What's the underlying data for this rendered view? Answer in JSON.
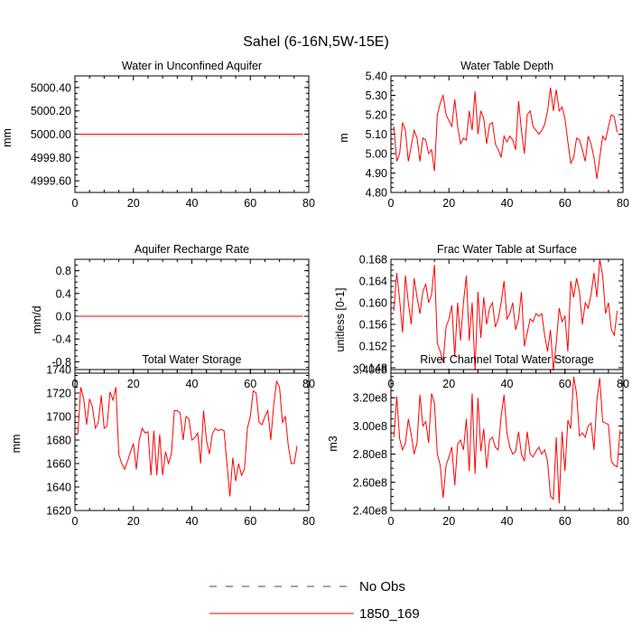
{
  "figure_title": "Sahel (6-16N,5W-15E)",
  "legend": {
    "entries": [
      {
        "label": "No Obs",
        "color": "#3b3bb8",
        "dashed": true
      },
      {
        "label": "1850_169",
        "color": "#ff0000",
        "dashed": false
      }
    ]
  },
  "chart_data": [
    {
      "type": "line",
      "title": "Water in Unconfined Aquifer",
      "ylabel": "mm",
      "xlim": [
        0,
        80
      ],
      "ylim": [
        4999.5,
        5000.5
      ],
      "yticks": [
        4999.6,
        4999.8,
        5000.0,
        5000.2,
        5000.4
      ],
      "ytick_labels": [
        "4999.60",
        "4999.80",
        "5000.00",
        "5000.20",
        "5000.40"
      ],
      "xticks": [
        0,
        20,
        40,
        60,
        80
      ],
      "xtick_labels": [
        "0",
        "20",
        "40",
        "60",
        "80"
      ],
      "series": [
        {
          "name": "1850_169",
          "color": "#ff0000",
          "x": [
            1,
            78
          ],
          "y": [
            5000.0,
            5000.0
          ]
        }
      ]
    },
    {
      "type": "line",
      "title": "Water Table Depth",
      "ylabel": "m",
      "xlim": [
        0,
        80
      ],
      "ylim": [
        4.8,
        5.4
      ],
      "yticks": [
        4.8,
        4.9,
        5.0,
        5.1,
        5.2,
        5.3,
        5.4
      ],
      "ytick_labels": [
        "4.80",
        "4.90",
        "5.00",
        "5.10",
        "5.20",
        "5.30",
        "5.40"
      ],
      "xticks": [
        0,
        20,
        40,
        60,
        80
      ],
      "xtick_labels": [
        "0",
        "20",
        "40",
        "60",
        "80"
      ],
      "series": [
        {
          "name": "1850_169",
          "color": "#ff0000",
          "start_x": 1,
          "y": [
            5.14,
            4.96,
            5.0,
            5.16,
            5.12,
            4.96,
            5.04,
            5.12,
            5.08,
            4.96,
            5.08,
            5.07,
            5.0,
            5.02,
            4.91,
            5.2,
            5.26,
            5.3,
            5.2,
            5.17,
            5.14,
            5.28,
            5.14,
            5.05,
            5.08,
            5.07,
            5.22,
            5.12,
            5.32,
            5.1,
            5.22,
            5.18,
            5.05,
            5.15,
            5.16,
            5.05,
            5.02,
            4.98,
            5.09,
            5.06,
            5.09,
            5.07,
            5.02,
            5.27,
            5.12,
            5.0,
            5.2,
            5.22,
            5.14,
            5.12,
            5.1,
            5.12,
            5.15,
            5.22,
            5.34,
            5.22,
            5.33,
            5.22,
            5.24,
            5.18,
            5.06,
            4.95,
            4.98,
            5.08,
            5.07,
            5.02,
            4.96,
            5.09,
            5.05,
            4.98,
            4.87,
            4.98,
            5.09,
            5.07,
            5.14,
            5.2,
            5.19,
            5.11
          ]
        }
      ]
    },
    {
      "type": "line",
      "title": "Aquifer Recharge Rate",
      "ylabel": "mm/d",
      "xlim": [
        0,
        80
      ],
      "ylim": [
        -1.0,
        1.0
      ],
      "yticks": [
        -0.8,
        -0.4,
        0.0,
        0.4,
        0.8
      ],
      "ytick_labels": [
        "-0.8",
        "-0.4",
        "0.0",
        "0.4",
        "0.8"
      ],
      "xticks": [
        0,
        20,
        40,
        60,
        80
      ],
      "xtick_labels": [
        "0",
        "20",
        "40",
        "60",
        "80"
      ],
      "series": [
        {
          "name": "1850_169",
          "color": "#ff0000",
          "x": [
            1,
            78
          ],
          "y": [
            0.0,
            0.0
          ]
        }
      ]
    },
    {
      "type": "line",
      "title": "Frac Water Table at Surface",
      "ylabel": "unitless [0-1]",
      "xlim": [
        0,
        80
      ],
      "ylim": [
        0.147,
        0.168
      ],
      "yticks": [
        0.148,
        0.152,
        0.156,
        0.16,
        0.164,
        0.168
      ],
      "ytick_labels": [
        "0.148",
        "0.152",
        "0.156",
        "0.160",
        "0.164",
        "0.168"
      ],
      "xticks": [
        0,
        20,
        40,
        60,
        80
      ],
      "xtick_labels": [
        "0",
        "20",
        "40",
        "60",
        "80"
      ],
      "series": [
        {
          "name": "1850_169",
          "color": "#ff0000",
          "start_x": 1,
          "y": [
            0.1585,
            0.1655,
            0.1605,
            0.1545,
            0.165,
            0.16,
            0.156,
            0.1645,
            0.161,
            0.158,
            0.162,
            0.1635,
            0.16,
            0.1615,
            0.167,
            0.1525,
            0.151,
            0.149,
            0.1555,
            0.157,
            0.1595,
            0.15,
            0.16,
            0.153,
            0.16,
            0.165,
            0.153,
            0.16,
            0.1475,
            0.162,
            0.1535,
            0.161,
            0.156,
            0.159,
            0.16,
            0.1555,
            0.157,
            0.16,
            0.164,
            0.157,
            0.158,
            0.16,
            0.155,
            0.157,
            0.162,
            0.152,
            0.1545,
            0.157,
            0.1565,
            0.158,
            0.1575,
            0.158,
            0.154,
            0.151,
            0.155,
            0.1475,
            0.1525,
            0.159,
            0.1565,
            0.1575,
            0.151,
            0.164,
            0.161,
            0.1645,
            0.162,
            0.156,
            0.16,
            0.159,
            0.1615,
            0.1655,
            0.161,
            0.168,
            0.165,
            0.158,
            0.16,
            0.155,
            0.154,
            0.1585
          ]
        }
      ]
    },
    {
      "type": "line",
      "title": "Total Water Storage",
      "ylabel": "mm",
      "xlim": [
        0,
        80
      ],
      "ylim": [
        1620,
        1740
      ],
      "yticks": [
        1620,
        1640,
        1660,
        1680,
        1700,
        1720,
        1740
      ],
      "ytick_labels": [
        "1620",
        "1640",
        "1660",
        "1680",
        "1700",
        "1720",
        "1740"
      ],
      "xticks": [
        0,
        20,
        40,
        60,
        80
      ],
      "xtick_labels": [
        "0",
        "20",
        "40",
        "60",
        "80"
      ],
      "series": [
        {
          "name": "1850_169",
          "color": "#ff0000",
          "start_x": 1,
          "y": [
            1685,
            1725,
            1715,
            1693,
            1715,
            1708,
            1690,
            1695,
            1718,
            1690,
            1692,
            1721,
            1714,
            1725,
            1668,
            1660,
            1655,
            1662,
            1670,
            1677,
            1655,
            1680,
            1690,
            1686,
            1687,
            1650,
            1688,
            1650,
            1685,
            1650,
            1670,
            1660,
            1668,
            1705,
            1705,
            1703,
            1680,
            1700,
            1698,
            1680,
            1682,
            1686,
            1660,
            1705,
            1680,
            1668,
            1685,
            1690,
            1688,
            1689,
            1688,
            1660,
            1632,
            1665,
            1645,
            1660,
            1650,
            1655,
            1690,
            1700,
            1722,
            1720,
            1695,
            1693,
            1700,
            1705,
            1680,
            1710,
            1730,
            1725,
            1695,
            1700,
            1675,
            1660,
            1660,
            1675
          ]
        }
      ]
    },
    {
      "type": "line",
      "title": "River Channel Total Water Storage",
      "ylabel": "m3",
      "xlim": [
        0,
        80
      ],
      "ylim": [
        240000000.0,
        340000000.0
      ],
      "yticks": [
        240000000.0,
        260000000.0,
        280000000.0,
        300000000.0,
        320000000.0,
        340000000.0
      ],
      "ytick_labels": [
        "2.40e8",
        "2.60e8",
        "2.80e8",
        "3.00e8",
        "3.20e8",
        "3.40e8"
      ],
      "xticks": [
        0,
        20,
        40,
        60,
        80
      ],
      "xtick_labels": [
        "0",
        "20",
        "40",
        "60",
        "80"
      ],
      "series": [
        {
          "name": "1850_169",
          "color": "#ff0000",
          "start_x": 1,
          "y": [
            292000000.0,
            321000000.0,
            291000000.0,
            283000000.0,
            288000000.0,
            305000000.0,
            294000000.0,
            280000000.0,
            288000000.0,
            322000000.0,
            300000000.0,
            303000000.0,
            288000000.0,
            323000000.0,
            316000000.0,
            280000000.0,
            272000000.0,
            249000000.0,
            272000000.0,
            278000000.0,
            285000000.0,
            258000000.0,
            287000000.0,
            290000000.0,
            283000000.0,
            305000000.0,
            268000000.0,
            323000000.0,
            266000000.0,
            320000000.0,
            282000000.0,
            298000000.0,
            270000000.0,
            290000000.0,
            292000000.0,
            285000000.0,
            283000000.0,
            307000000.0,
            322000000.0,
            295000000.0,
            285000000.0,
            280000000.0,
            282000000.0,
            296000000.0,
            280000000.0,
            275000000.0,
            296000000.0,
            280000000.0,
            278000000.0,
            282000000.0,
            285000000.0,
            280000000.0,
            283000000.0,
            275000000.0,
            250000000.0,
            248000000.0,
            292000000.0,
            245000000.0,
            296000000.0,
            268000000.0,
            304000000.0,
            298000000.0,
            335000000.0,
            323000000.0,
            293000000.0,
            295000000.0,
            292000000.0,
            300000000.0,
            302000000.0,
            283000000.0,
            318000000.0,
            334000000.0,
            303000000.0,
            302000000.0,
            301000000.0,
            275000000.0,
            272000000.0,
            271000000.0,
            297000000.0
          ]
        }
      ]
    }
  ]
}
